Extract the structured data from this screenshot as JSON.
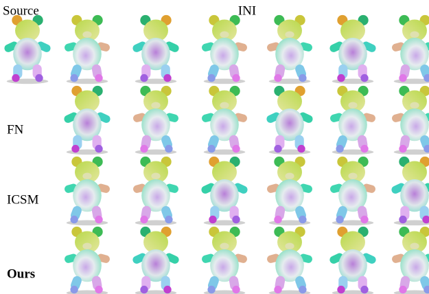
{
  "header": {
    "source": "Source",
    "method": "INI"
  },
  "rows": [
    {
      "label": "FN"
    },
    {
      "label": "ICSM"
    },
    {
      "label": "Ours"
    }
  ]
}
